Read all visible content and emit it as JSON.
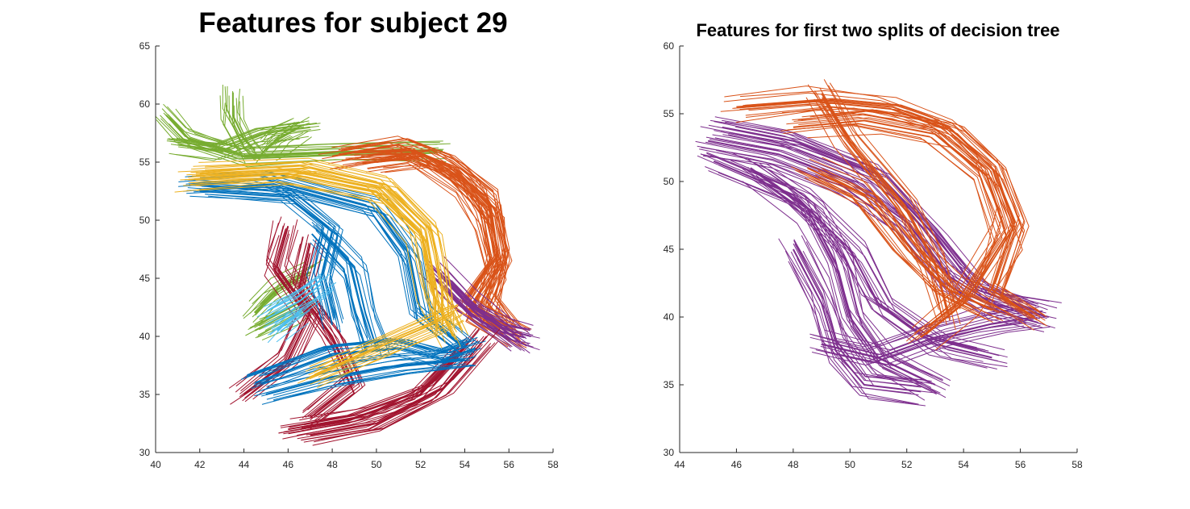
{
  "chart_data": [
    {
      "type": "line",
      "title": "Features for subject 29",
      "xlim": [
        40,
        58
      ],
      "ylim": [
        30,
        65
      ],
      "xticks": [
        "40",
        "42",
        "44",
        "46",
        "48",
        "50",
        "52",
        "54",
        "56",
        "58"
      ],
      "yticks": [
        "30",
        "35",
        "40",
        "45",
        "50",
        "55",
        "60",
        "65"
      ],
      "grid": false,
      "series": [
        {
          "color": "#77AC30",
          "paths": [
            [
              [
                44.5,
                56
              ],
              [
                44,
                57
              ],
              [
                43.5,
                59
              ],
              [
                43.5,
                61
              ]
            ],
            [
              [
                41,
                56.5
              ],
              [
                43,
                56
              ],
              [
                45,
                57.5
              ],
              [
                47,
                58
              ]
            ],
            [
              [
                40.5,
                59
              ],
              [
                41.5,
                57
              ],
              [
                44,
                55.5
              ],
              [
                48,
                55.8
              ],
              [
                53,
                56
              ]
            ],
            [
              [
                45,
                56
              ],
              [
                45.5,
                57
              ],
              [
                46.5,
                58
              ]
            ],
            [
              [
                44.5,
                42
              ],
              [
                45.5,
                44
              ],
              [
                47,
                45.5
              ]
            ],
            [
              [
                44.5,
                40.5
              ],
              [
                46,
                42
              ],
              [
                47,
                43
              ]
            ]
          ]
        },
        {
          "color": "#D95319",
          "paths": [
            [
              [
                48,
                55.5
              ],
              [
                51,
                56.5
              ],
              [
                53,
                55
              ],
              [
                55,
                52
              ],
              [
                55.5,
                47
              ],
              [
                55,
                43
              ],
              [
                56,
                40.5
              ]
            ],
            [
              [
                50,
                55
              ],
              [
                52,
                55.5
              ],
              [
                54,
                53
              ],
              [
                55,
                50
              ],
              [
                55.5,
                46
              ],
              [
                54.5,
                42
              ],
              [
                56.5,
                40
              ]
            ],
            [
              [
                49,
                55.8
              ],
              [
                51.5,
                56
              ],
              [
                53.5,
                54.5
              ],
              [
                55.2,
                51
              ],
              [
                55.5,
                47
              ],
              [
                54,
                43
              ],
              [
                55.5,
                41
              ]
            ]
          ]
        },
        {
          "color": "#7E2F8E",
          "paths": [
            [
              [
                53,
                45
              ],
              [
                54.5,
                42
              ],
              [
                56,
                40.5
              ],
              [
                57,
                40
              ]
            ],
            [
              [
                52.5,
                46
              ],
              [
                54,
                43
              ],
              [
                56.5,
                39.5
              ]
            ]
          ]
        },
        {
          "color": "#A2142F",
          "paths": [
            [
              [
                46,
                49.5
              ],
              [
                45.5,
                46
              ],
              [
                47,
                42
              ],
              [
                46,
                38
              ],
              [
                44,
                35
              ]
            ],
            [
              [
                47,
                48
              ],
              [
                46.5,
                44
              ],
              [
                48,
                40
              ],
              [
                49,
                36
              ],
              [
                47,
                33
              ]
            ],
            [
              [
                46,
                32
              ],
              [
                49,
                33
              ],
              [
                52,
                35
              ],
              [
                54,
                39
              ]
            ],
            [
              [
                47,
                31.5
              ],
              [
                50,
                32.5
              ],
              [
                53,
                35.5
              ],
              [
                55,
                40
              ]
            ]
          ]
        },
        {
          "color": "#0072BD",
          "paths": [
            [
              [
                41.5,
                53
              ],
              [
                45,
                53.5
              ],
              [
                50,
                51
              ],
              [
                51.5,
                47
              ],
              [
                52,
                42
              ],
              [
                54,
                39
              ]
            ],
            [
              [
                44.5,
                36
              ],
              [
                48,
                38.5
              ],
              [
                51,
                39
              ],
              [
                53,
                38
              ],
              [
                54.5,
                39
              ]
            ],
            [
              [
                45,
                35
              ],
              [
                48,
                36.5
              ],
              [
                51,
                37.5
              ],
              [
                54,
                38
              ]
            ],
            [
              [
                42,
                52.5
              ],
              [
                46,
                52
              ],
              [
                48,
                49
              ],
              [
                47.5,
                45
              ],
              [
                48,
                41
              ]
            ],
            [
              [
                47.5,
                49
              ],
              [
                49,
                46
              ],
              [
                49.5,
                42
              ],
              [
                50,
                39
              ]
            ]
          ]
        },
        {
          "color": "#4DBEEE",
          "paths": [
            [
              [
                45,
                41.5
              ],
              [
                46.5,
                43
              ],
              [
                47.5,
                44.5
              ]
            ],
            [
              [
                45.5,
                40.5
              ],
              [
                46.5,
                42
              ]
            ]
          ]
        },
        {
          "color": "#EDB120",
          "paths": [
            [
              [
                41.5,
                53.5
              ],
              [
                46,
                54
              ],
              [
                50,
                52.5
              ],
              [
                52,
                49
              ],
              [
                52.5,
                44
              ],
              [
                53.5,
                40
              ]
            ],
            [
              [
                42,
                54
              ],
              [
                47,
                54.5
              ],
              [
                50.5,
                53
              ],
              [
                52.5,
                49
              ],
              [
                53,
                44
              ],
              [
                53,
                41
              ]
            ],
            [
              [
                47,
                36.5
              ],
              [
                50,
                39
              ],
              [
                52.5,
                41
              ],
              [
                53.5,
                42
              ]
            ]
          ]
        }
      ]
    },
    {
      "type": "line",
      "title": "Features for first two splits of decision tree",
      "xlim": [
        44,
        58
      ],
      "ylim": [
        30,
        60
      ],
      "xticks": [
        "44",
        "46",
        "48",
        "50",
        "52",
        "54",
        "56",
        "58"
      ],
      "yticks": [
        "30",
        "35",
        "40",
        "45",
        "50",
        "55",
        "60"
      ],
      "grid": false,
      "series": [
        {
          "color": "#7E2F8E",
          "paths": [
            [
              [
                45,
                53
              ],
              [
                47.5,
                52
              ],
              [
                50,
                50
              ],
              [
                52,
                47
              ],
              [
                53.5,
                43
              ],
              [
                55,
                41
              ],
              [
                57,
                40
              ]
            ],
            [
              [
                45.5,
                54
              ],
              [
                48,
                53
              ],
              [
                51,
                50.5
              ],
              [
                53,
                46
              ],
              [
                54.5,
                42
              ],
              [
                56.5,
                40.5
              ]
            ],
            [
              [
                45.2,
                51.5
              ],
              [
                48,
                49
              ],
              [
                50,
                45
              ],
              [
                51,
                41
              ],
              [
                53,
                38
              ],
              [
                55,
                37
              ]
            ],
            [
              [
                46.5,
                51
              ],
              [
                48.5,
                48
              ],
              [
                49.5,
                44
              ],
              [
                50,
                40
              ],
              [
                51,
                37
              ],
              [
                53,
                35
              ]
            ],
            [
              [
                48,
                45
              ],
              [
                49,
                41
              ],
              [
                49.5,
                37.5
              ],
              [
                50.5,
                35
              ],
              [
                52.5,
                34.5
              ]
            ],
            [
              [
                49,
                38
              ],
              [
                51,
                37
              ],
              [
                53,
                38.5
              ],
              [
                55,
                39.5
              ],
              [
                56.5,
                40
              ]
            ]
          ]
        },
        {
          "color": "#D95319",
          "paths": [
            [
              [
                46,
                55.5
              ],
              [
                49,
                56
              ],
              [
                51.5,
                55.5
              ],
              [
                53.5,
                54
              ],
              [
                55,
                51
              ],
              [
                55.8,
                47
              ],
              [
                55,
                42
              ],
              [
                56.5,
                40
              ]
            ],
            [
              [
                48,
                54
              ],
              [
                50.5,
                54.5
              ],
              [
                53,
                53.5
              ],
              [
                54.8,
                50.5
              ],
              [
                55.5,
                46
              ],
              [
                54,
                41
              ],
              [
                52.5,
                38.5
              ]
            ],
            [
              [
                49,
                56.5
              ],
              [
                50,
                53
              ],
              [
                52,
                48
              ],
              [
                53,
                44
              ],
              [
                53.5,
                40
              ]
            ],
            [
              [
                48.5,
                51
              ],
              [
                50.5,
                49
              ],
              [
                52,
                45
              ],
              [
                53.5,
                42
              ],
              [
                55,
                40.5
              ]
            ]
          ]
        }
      ]
    }
  ]
}
